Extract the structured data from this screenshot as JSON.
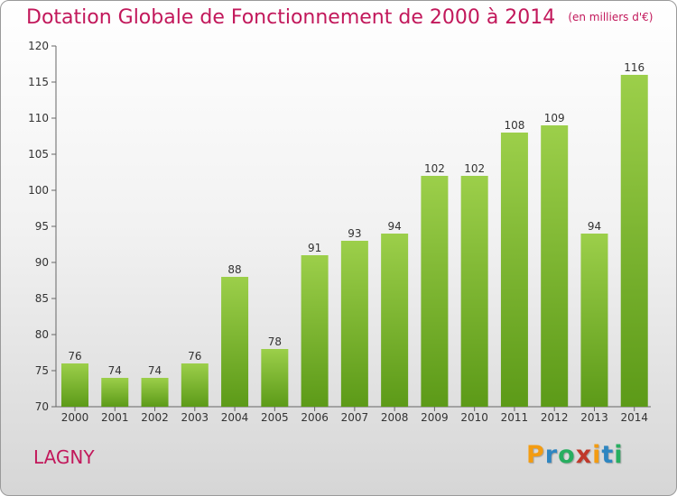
{
  "title": "Dotation Globale de Fonctionnement de 2000 à 2014",
  "subtitle": "(en milliers d'€)",
  "commune": "LAGNY",
  "logo": {
    "letters": [
      "P",
      "r",
      "o",
      "x",
      "i",
      "t",
      "i"
    ],
    "colors": [
      "#f39c12",
      "#2e86c1",
      "#27ae60",
      "#c0392b",
      "#f39c12",
      "#2e86c1",
      "#27ae60"
    ]
  },
  "colors": {
    "bar_top": "#9ccf4a",
    "bar_bottom": "#5c9a18",
    "title": "#c2185b"
  },
  "chart_data": {
    "type": "bar",
    "categories": [
      "2000",
      "2001",
      "2002",
      "2003",
      "2004",
      "2005",
      "2006",
      "2007",
      "2008",
      "2009",
      "2010",
      "2011",
      "2012",
      "2013",
      "2014"
    ],
    "values": [
      76,
      74,
      74,
      76,
      88,
      78,
      91,
      93,
      94,
      102,
      102,
      108,
      109,
      94,
      116
    ],
    "ylim": [
      70,
      120
    ],
    "yticks": [
      70,
      75,
      80,
      85,
      90,
      95,
      100,
      105,
      110,
      115,
      120
    ],
    "xlabel": "",
    "ylabel": "",
    "grid": false,
    "data_labels": true
  }
}
